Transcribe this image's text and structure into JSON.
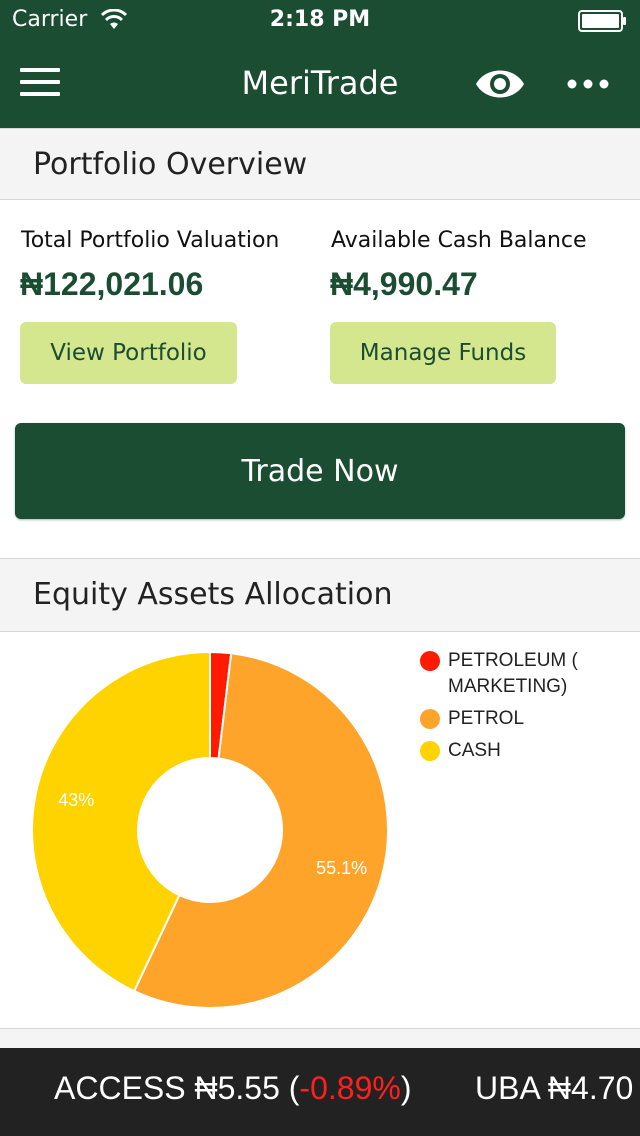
{
  "status_bar": {
    "carrier": "Carrier",
    "time": "2:18 PM"
  },
  "header": {
    "title": "MeriTrade",
    "menu_icon": "hamburger-icon",
    "eye_icon": "eye-icon",
    "more_icon": "more-dots-icon"
  },
  "overview": {
    "title": "Portfolio Overview",
    "total_label": "Total Portfolio Valuation",
    "total_value": "₦122,021.06",
    "cash_label": "Available Cash Balance",
    "cash_value": "₦4,990.47",
    "view_portfolio": "View Portfolio",
    "manage_funds": "Manage Funds",
    "trade_now": "Trade Now"
  },
  "allocation": {
    "title": "Equity Assets Allocation"
  },
  "chart_data": {
    "type": "pie",
    "categories": [
      "PETROLEUM ( MARKETING)",
      "PETROL",
      "CASH"
    ],
    "legend_lines": [
      [
        "PETROLEUM (",
        "MARKETING)"
      ],
      [
        "PETROL"
      ],
      [
        "CASH"
      ]
    ],
    "values": [
      1.9,
      55.1,
      43.0
    ],
    "data_labels": [
      "",
      "55.1%",
      "43%"
    ],
    "colors": [
      "#ff1a00",
      "#ffa42b",
      "#ffd300"
    ],
    "donut": true,
    "legend": "top-right"
  },
  "ticker": {
    "items": [
      {
        "symbol": "ACCESS",
        "price": "₦5.55",
        "change": "-0.89%"
      },
      {
        "symbol": "UBA",
        "price": "₦4.70",
        "change": ""
      }
    ]
  },
  "colors": {
    "primary": "#1b4d33",
    "accent_light": "#d4e68e",
    "negative": "#ff1f1f"
  }
}
